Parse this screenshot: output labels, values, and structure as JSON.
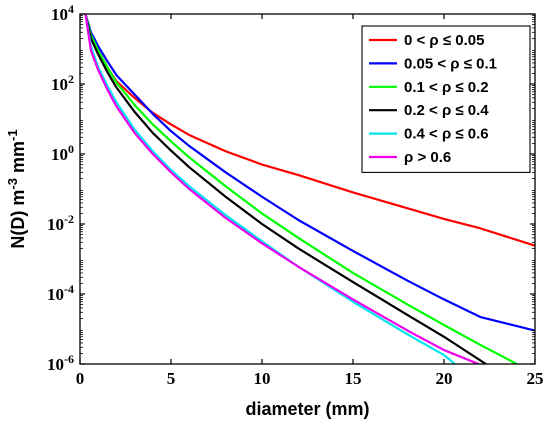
{
  "chart_data": {
    "type": "line",
    "title": "",
    "xlabel": "diameter (mm)",
    "ylabel": "N(D)  m",
    "ylabel_sup1": "-3",
    "ylabel_mid": " mm",
    "ylabel_sup2": "-1",
    "xlim": [
      0,
      25
    ],
    "ylim": [
      1e-06,
      10000.0
    ],
    "yscale": "log",
    "grid": false,
    "legend_position": "top-right",
    "xticks": [
      0,
      5,
      10,
      15,
      20,
      25
    ],
    "xtick_labels": [
      "0",
      "5",
      "10",
      "15",
      "20",
      "25"
    ],
    "yticks": [
      1e-06,
      0.0001,
      0.01,
      1.0,
      100.0,
      10000.0
    ],
    "ytick_base": "10",
    "ytick_exponents": [
      "-6",
      "-4",
      "-2",
      "0",
      "2",
      "4"
    ],
    "series": [
      {
        "name": "0 < ρ ≤ 0.05",
        "color": "#ff0000",
        "x": [
          0.3,
          0.6,
          1,
          1.5,
          2,
          3,
          4,
          5,
          6,
          8,
          10,
          12,
          15,
          18,
          20,
          22,
          25
        ],
        "y": [
          10000,
          2500,
          900,
          300,
          120,
          40,
          15,
          7,
          3.5,
          1.2,
          0.5,
          0.25,
          0.08,
          0.028,
          0.014,
          0.0075,
          0.0024
        ]
      },
      {
        "name": "0.05 < ρ ≤ 0.1",
        "color": "#0000ff",
        "x": [
          0.3,
          0.6,
          1,
          1.5,
          2,
          3,
          4,
          5,
          6,
          8,
          10,
          12,
          15,
          18,
          20,
          22,
          25
        ],
        "y": [
          10000,
          3000,
          1200,
          450,
          180,
          50,
          14,
          4.5,
          1.7,
          0.3,
          0.06,
          0.013,
          0.0017,
          0.00024,
          7e-05,
          2.2e-05,
          9e-06
        ]
      },
      {
        "name": "0.1 < ρ ≤ 0.2",
        "color": "#00ff00",
        "x": [
          0.3,
          0.6,
          1,
          1.5,
          2,
          3,
          4,
          5,
          6,
          8,
          10,
          12,
          15,
          18,
          20,
          22,
          24
        ],
        "y": [
          10000,
          2500,
          900,
          300,
          110,
          25,
          7,
          2.3,
          0.8,
          0.12,
          0.02,
          0.004,
          0.0004,
          5e-05,
          1.3e-05,
          3.5e-06,
          1e-06
        ]
      },
      {
        "name": "0.2 < ρ ≤ 0.4",
        "color": "#000000",
        "x": [
          0.3,
          0.6,
          1,
          1.5,
          2,
          3,
          4,
          5,
          6,
          8,
          10,
          12,
          15,
          18,
          20,
          22.3
        ],
        "y": [
          10000,
          2000,
          700,
          220,
          80,
          16,
          4,
          1.25,
          0.42,
          0.06,
          0.01,
          0.002,
          0.00022,
          2.5e-05,
          6e-06,
          1e-06
        ]
      },
      {
        "name": "0.4 < ρ ≤ 0.6",
        "color": "#00e5ee",
        "x": [
          0.3,
          0.6,
          1,
          1.5,
          2,
          3,
          4,
          5,
          6,
          8,
          10,
          12,
          15,
          18,
          20,
          20.6
        ],
        "y": [
          10000,
          1200,
          300,
          90,
          30,
          5,
          1.2,
          0.35,
          0.12,
          0.018,
          0.0032,
          0.0006,
          6e-05,
          7e-06,
          1.8e-06,
          1e-06
        ]
      },
      {
        "name": "ρ > 0.6",
        "color": "#ee00ee",
        "x": [
          0.3,
          0.6,
          1,
          1.5,
          2,
          3,
          4,
          5,
          6,
          8,
          10,
          12,
          15,
          18,
          20,
          21.9
        ],
        "y": [
          10000,
          900,
          250,
          70,
          23,
          4,
          1,
          0.3,
          0.1,
          0.015,
          0.0028,
          0.0006,
          7e-05,
          9e-06,
          2.5e-06,
          1e-06
        ]
      }
    ]
  }
}
